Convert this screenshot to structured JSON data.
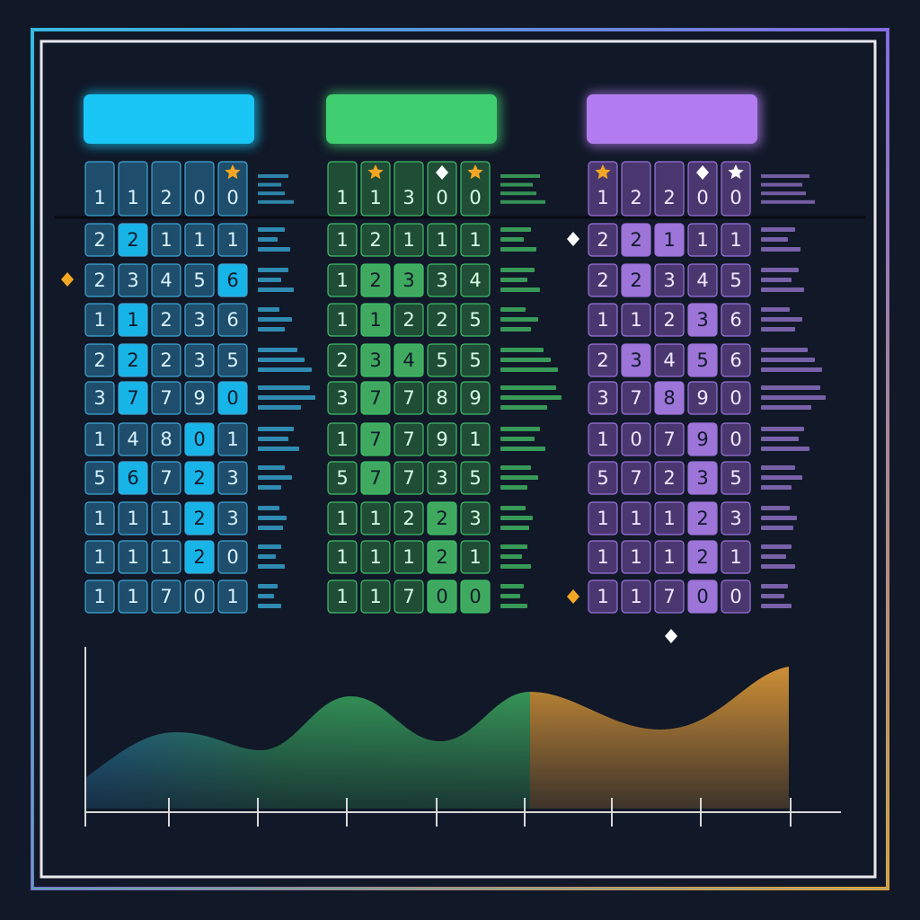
{
  "panels": [
    {
      "header": [
        1,
        1,
        2,
        0,
        0
      ],
      "rows": [
        [
          2,
          2,
          1,
          1,
          1
        ],
        [
          2,
          3,
          4,
          5,
          6
        ],
        [
          1,
          1,
          2,
          3,
          6
        ],
        [
          2,
          2,
          2,
          3,
          5
        ],
        [
          3,
          7,
          7,
          9,
          0
        ],
        [
          1,
          4,
          8,
          0,
          1
        ],
        [
          5,
          6,
          7,
          2,
          3
        ],
        [
          1,
          1,
          1,
          2,
          3
        ],
        [
          1,
          1,
          1,
          2,
          0
        ],
        [
          1,
          1,
          7,
          0,
          1
        ]
      ]
    },
    {
      "header": [
        1,
        1,
        3,
        0,
        0
      ],
      "rows": [
        [
          1,
          2,
          1,
          1,
          1
        ],
        [
          1,
          2,
          3,
          3,
          4
        ],
        [
          1,
          1,
          2,
          2,
          5
        ],
        [
          2,
          3,
          4,
          5,
          5
        ],
        [
          3,
          7,
          7,
          8,
          9
        ],
        [
          1,
          7,
          7,
          9,
          1
        ],
        [
          5,
          7,
          7,
          3,
          5
        ],
        [
          1,
          1,
          2,
          2,
          3
        ],
        [
          1,
          1,
          1,
          2,
          1
        ],
        [
          1,
          1,
          7,
          0,
          0
        ]
      ]
    },
    {
      "header": [
        1,
        2,
        2,
        0,
        0
      ],
      "rows": [
        [
          2,
          2,
          1,
          1,
          1
        ],
        [
          2,
          2,
          3,
          4,
          5
        ],
        [
          1,
          1,
          2,
          3,
          6
        ],
        [
          2,
          3,
          4,
          5,
          6
        ],
        [
          3,
          7,
          8,
          9,
          0
        ],
        [
          1,
          0,
          7,
          9,
          0
        ],
        [
          5,
          7,
          2,
          3,
          5
        ],
        [
          1,
          1,
          1,
          2,
          3
        ],
        [
          1,
          1,
          1,
          2,
          1
        ],
        [
          1,
          1,
          7,
          0,
          0
        ]
      ]
    }
  ]
}
